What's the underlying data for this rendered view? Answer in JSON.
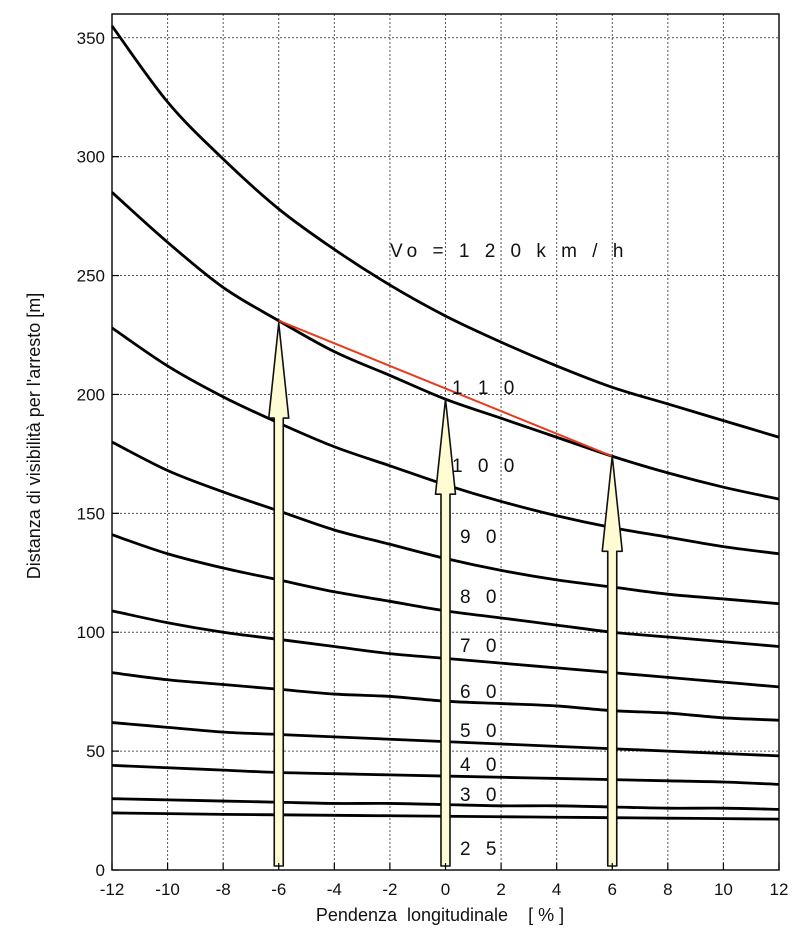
{
  "chart_data": {
    "type": "line",
    "xlabel": "Pendenza  longitudinale    [ % ]",
    "ylabel": "Distanza di visibilità per l'arresto [m]",
    "xlim": [
      -12,
      12
    ],
    "ylim": [
      0,
      360
    ],
    "x_ticks": [
      "-12",
      "-10",
      "-8",
      "-6",
      "-4",
      "-2",
      "0",
      "2",
      "4",
      "6",
      "8",
      "10",
      "12"
    ],
    "y_ticks": [
      "0",
      "50",
      "100",
      "150",
      "200",
      "250",
      "300",
      "350"
    ],
    "grid": true,
    "x": [
      -12,
      -10,
      -8,
      -6,
      -4,
      -2,
      0,
      2,
      4,
      6,
      8,
      10,
      12
    ],
    "series": [
      {
        "name": "Vo = 1 2 0   k m / h",
        "values": [
          355,
          323,
          299,
          278,
          261,
          246,
          233,
          222,
          212,
          203,
          196,
          189,
          182
        ]
      },
      {
        "name": "1 1 0",
        "values": [
          285,
          264,
          245,
          231,
          218,
          208,
          198,
          190,
          182,
          174,
          167,
          161,
          156
        ]
      },
      {
        "name": "1 0 0",
        "values": [
          228,
          212,
          199,
          188,
          178,
          170,
          162,
          155,
          149,
          144,
          140,
          136,
          133
        ]
      },
      {
        "name": "9 0",
        "values": [
          180,
          168,
          159,
          151,
          143,
          137,
          131,
          126,
          122,
          119,
          116,
          114,
          112
        ]
      },
      {
        "name": "8 0",
        "values": [
          141,
          133,
          127,
          122,
          117,
          113,
          109,
          106,
          103,
          100,
          98,
          96,
          94
        ]
      },
      {
        "name": "7 0",
        "values": [
          109,
          104,
          100,
          97,
          94,
          91,
          89,
          87,
          85,
          83,
          81,
          79,
          77
        ]
      },
      {
        "name": "6 0",
        "values": [
          83,
          80,
          78,
          76,
          74,
          73,
          71,
          70,
          69,
          67,
          66,
          64,
          63
        ]
      },
      {
        "name": "5 0",
        "values": [
          62,
          60,
          58,
          57,
          56,
          55,
          54,
          53,
          52,
          51,
          50,
          49,
          48
        ]
      },
      {
        "name": "4 0",
        "values": [
          44,
          43,
          42,
          41,
          40.5,
          40,
          39.5,
          39,
          38.5,
          38,
          37.5,
          37,
          36
        ]
      },
      {
        "name": "3 0",
        "values": [
          30,
          29.5,
          29,
          28.5,
          28,
          28,
          27.5,
          27,
          27,
          26.5,
          26,
          26,
          25.5
        ]
      },
      {
        "name": "2 5",
        "values": [
          24,
          23.7,
          23.4,
          23.2,
          23,
          22.8,
          22.6,
          22.4,
          22.2,
          22,
          21.8,
          21.6,
          21.4
        ]
      }
    ],
    "arrows": [
      {
        "x": -6,
        "from": 0,
        "to": 230
      },
      {
        "x": 0,
        "from": 0,
        "to": 198
      },
      {
        "x": 6,
        "from": 0,
        "to": 174
      }
    ],
    "red_line": {
      "from": [
        -6,
        231
      ],
      "to": [
        6,
        174
      ]
    },
    "colors": {
      "curve": "#000000",
      "grid": "#555555",
      "red_line": "#e8391c",
      "arrow_fill": "#fffbd2",
      "arrow_stroke": "#111111"
    }
  }
}
